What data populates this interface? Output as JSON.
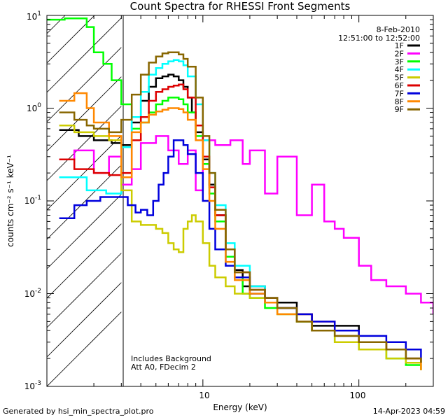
{
  "chart_data": {
    "type": "line",
    "title": "Count Spectra for RHESSI Front Segments",
    "xlabel": "Energy (keV)",
    "ylabel": "counts cm⁻² s⁻¹ keV⁻¹",
    "xscale": "log",
    "yscale": "log",
    "xlim": [
      1,
      300
    ],
    "ylim": [
      0.001,
      10
    ],
    "x_tick_labels": [
      "10",
      "100"
    ],
    "y_tick_labels": [
      {
        "base": "10",
        "exp": "-3"
      },
      {
        "base": "10",
        "exp": "-2"
      },
      {
        "base": "10",
        "exp": "-1"
      },
      {
        "base": "10",
        "exp": "0"
      },
      {
        "base": "10",
        "exp": "1"
      }
    ],
    "shaded_region": {
      "x": [
        1,
        3
      ],
      "style": "diagonal-hatch"
    },
    "date": "8-Feb-2010",
    "time_range": "12:51:00 to 12:52:00",
    "annotation_lines": [
      "Includes Background",
      "Att A0, FDecim 2"
    ],
    "legend_position": "top-right",
    "series": [
      {
        "name": "1F",
        "color": "#000000",
        "x": [
          1.2,
          1.6,
          2.0,
          2.6,
          3.0,
          3.5,
          4.0,
          4.5,
          5.0,
          5.5,
          6.0,
          6.5,
          7.0,
          7.5,
          8.0,
          8.5,
          9.0,
          10.0,
          11.0,
          12.0,
          14.0,
          16.0,
          18.0,
          20.0,
          25.0,
          30.0,
          40.0,
          50.0,
          70.0,
          100.0,
          150.0,
          200.0,
          250.0
        ],
        "y": [
          0.58,
          0.5,
          0.45,
          0.42,
          0.4,
          0.7,
          1.2,
          1.7,
          2.1,
          2.2,
          2.3,
          2.2,
          2.0,
          1.7,
          1.3,
          0.9,
          0.55,
          0.28,
          0.15,
          0.07,
          0.03,
          0.018,
          0.012,
          0.012,
          0.009,
          0.008,
          0.006,
          0.0045,
          0.0045,
          0.003,
          0.0025,
          0.002,
          0.0018
        ]
      },
      {
        "name": "2F",
        "color": "#ff00ff",
        "x": [
          1.2,
          1.5,
          2.0,
          2.5,
          3.0,
          3.5,
          4.0,
          4.5,
          5.0,
          6.0,
          7.0,
          8.0,
          9.0,
          10.0,
          12.0,
          15.0,
          18.0,
          20.0,
          25.0,
          30.0,
          40.0,
          50.0,
          60.0,
          70.0,
          80.0,
          100.0,
          120.0,
          150.0,
          200.0,
          250.0,
          300.0
        ],
        "y": [
          0.28,
          0.35,
          0.2,
          0.3,
          0.15,
          0.22,
          0.42,
          0.42,
          0.5,
          0.35,
          0.25,
          0.35,
          0.13,
          0.45,
          0.4,
          0.45,
          0.25,
          0.35,
          0.12,
          0.3,
          0.07,
          0.15,
          0.06,
          0.05,
          0.04,
          0.02,
          0.014,
          0.012,
          0.01,
          0.008,
          0.006
        ]
      },
      {
        "name": "3F",
        "color": "#00ff00",
        "x": [
          1.0,
          1.3,
          1.6,
          1.8,
          2.0,
          2.3,
          2.6,
          3.0,
          3.5,
          4.0,
          4.5,
          5.0,
          5.5,
          6.0,
          6.5,
          7.0,
          7.5,
          8.0,
          9.0,
          10.0,
          11.0,
          12.0,
          14.0,
          16.0,
          18.0,
          20.0,
          25.0,
          30.0,
          40.0,
          50.0,
          70.0,
          100.0,
          150.0,
          200.0,
          250.0
        ],
        "y": [
          9.0,
          9.3,
          9.3,
          7.5,
          4.0,
          3.0,
          2.0,
          1.1,
          0.6,
          0.7,
          0.9,
          1.1,
          1.2,
          1.3,
          1.3,
          1.25,
          1.1,
          0.9,
          0.5,
          0.25,
          0.12,
          0.06,
          0.025,
          0.015,
          0.01,
          0.009,
          0.007,
          0.006,
          0.005,
          0.004,
          0.003,
          0.0025,
          0.002,
          0.0017,
          0.0015
        ]
      },
      {
        "name": "4F",
        "color": "#00ffff",
        "x": [
          1.2,
          1.5,
          1.8,
          2.0,
          2.4,
          2.8,
          3.0,
          3.5,
          4.0,
          4.5,
          5.0,
          5.5,
          6.0,
          6.5,
          7.0,
          7.5,
          8.0,
          9.0,
          10.0,
          11.0,
          12.0,
          14.0,
          16.0,
          20.0,
          25.0,
          30.0,
          40.0,
          50.0,
          70.0,
          100.0,
          150.0,
          200.0,
          250.0
        ],
        "y": [
          0.18,
          0.18,
          0.13,
          0.13,
          0.12,
          0.12,
          0.38,
          0.8,
          1.5,
          2.3,
          2.7,
          3.0,
          3.2,
          3.3,
          3.2,
          2.9,
          2.2,
          1.1,
          0.45,
          0.2,
          0.09,
          0.035,
          0.02,
          0.012,
          0.009,
          0.007,
          0.005,
          0.004,
          0.0035,
          0.003,
          0.0025,
          0.002,
          0.0018
        ]
      },
      {
        "name": "5F",
        "color": "#cccc00",
        "x": [
          1.2,
          1.5,
          2.0,
          2.5,
          3.0,
          3.5,
          4.0,
          4.5,
          5.0,
          5.5,
          6.0,
          6.5,
          7.0,
          7.5,
          8.0,
          8.5,
          9.0,
          10.0,
          11.0,
          12.0,
          14.0,
          16.0,
          20.0,
          25.0,
          30.0,
          40.0,
          50.0,
          70.0,
          100.0,
          150.0,
          200.0,
          250.0
        ],
        "y": [
          0.65,
          0.55,
          0.5,
          0.45,
          0.13,
          0.06,
          0.055,
          0.055,
          0.05,
          0.045,
          0.035,
          0.03,
          0.028,
          0.05,
          0.06,
          0.07,
          0.06,
          0.035,
          0.02,
          0.015,
          0.012,
          0.01,
          0.009,
          0.008,
          0.006,
          0.005,
          0.004,
          0.003,
          0.0025,
          0.002,
          0.0018,
          0.0015
        ]
      },
      {
        "name": "6F",
        "color": "#dd0000",
        "x": [
          1.2,
          1.5,
          2.0,
          2.5,
          3.0,
          3.5,
          4.0,
          4.5,
          5.0,
          5.5,
          6.0,
          6.5,
          7.0,
          7.5,
          8.0,
          9.0,
          10.0,
          11.0,
          12.0,
          14.0,
          16.0,
          20.0,
          25.0,
          30.0,
          40.0,
          50.0,
          70.0,
          100.0,
          150.0,
          200.0,
          250.0
        ],
        "y": [
          0.28,
          0.22,
          0.2,
          0.19,
          0.2,
          0.45,
          0.8,
          1.2,
          1.5,
          1.6,
          1.7,
          1.75,
          1.8,
          1.6,
          1.3,
          0.65,
          0.3,
          0.14,
          0.07,
          0.03,
          0.017,
          0.011,
          0.009,
          0.007,
          0.006,
          0.005,
          0.004,
          0.003,
          0.0025,
          0.002,
          0.0018
        ]
      },
      {
        "name": "7F",
        "color": "#0000dd",
        "x": [
          1.2,
          1.5,
          1.8,
          2.2,
          2.6,
          3.0,
          3.3,
          3.7,
          4.0,
          4.4,
          4.8,
          5.2,
          5.6,
          6.0,
          6.5,
          7.0,
          7.5,
          8.0,
          9.0,
          10.0,
          11.0,
          12.0,
          14.0,
          16.0,
          20.0,
          25.0,
          30.0,
          40.0,
          50.0,
          70.0,
          100.0,
          150.0,
          200.0,
          250.0
        ],
        "y": [
          0.065,
          0.09,
          0.1,
          0.11,
          0.11,
          0.11,
          0.09,
          0.075,
          0.08,
          0.07,
          0.1,
          0.15,
          0.2,
          0.3,
          0.45,
          0.45,
          0.4,
          0.32,
          0.2,
          0.1,
          0.05,
          0.03,
          0.02,
          0.015,
          0.01,
          0.008,
          0.007,
          0.006,
          0.005,
          0.004,
          0.0035,
          0.003,
          0.0025,
          0.002
        ]
      },
      {
        "name": "8F",
        "color": "#ff8800",
        "x": [
          1.2,
          1.5,
          1.8,
          2.0,
          2.5,
          3.0,
          3.5,
          4.0,
          4.5,
          5.0,
          5.5,
          6.0,
          6.5,
          7.0,
          7.5,
          8.0,
          9.0,
          10.0,
          11.0,
          12.0,
          14.0,
          16.0,
          20.0,
          25.0,
          30.0,
          40.0,
          50.0,
          70.0,
          100.0,
          150.0,
          200.0,
          250.0
        ],
        "y": [
          1.2,
          1.45,
          1.0,
          0.7,
          0.5,
          0.18,
          0.55,
          0.7,
          0.85,
          0.92,
          0.96,
          1.0,
          1.0,
          0.98,
          0.9,
          0.75,
          0.45,
          0.22,
          0.1,
          0.05,
          0.022,
          0.014,
          0.01,
          0.008,
          0.006,
          0.005,
          0.004,
          0.0035,
          0.003,
          0.0025,
          0.002,
          0.0015
        ]
      },
      {
        "name": "9F",
        "color": "#886600",
        "x": [
          1.2,
          1.5,
          1.8,
          2.0,
          2.5,
          3.0,
          3.5,
          4.0,
          4.5,
          5.0,
          5.5,
          6.0,
          6.5,
          7.0,
          7.5,
          8.0,
          9.0,
          10.0,
          11.0,
          12.0,
          14.0,
          16.0,
          20.0,
          25.0,
          30.0,
          40.0,
          50.0,
          70.0,
          100.0,
          150.0,
          200.0,
          250.0
        ],
        "y": [
          0.9,
          0.75,
          0.65,
          0.6,
          0.55,
          0.75,
          1.4,
          2.3,
          3.1,
          3.6,
          3.9,
          4.0,
          4.0,
          3.8,
          3.4,
          2.8,
          1.3,
          0.5,
          0.2,
          0.08,
          0.03,
          0.017,
          0.011,
          0.009,
          0.007,
          0.005,
          0.004,
          0.0035,
          0.003,
          0.0025,
          0.002,
          0.0018
        ]
      }
    ]
  },
  "footer": {
    "left": "Generated by hsi_min_spectra_plot.pro",
    "right": "14-Apr-2023 04:59"
  }
}
